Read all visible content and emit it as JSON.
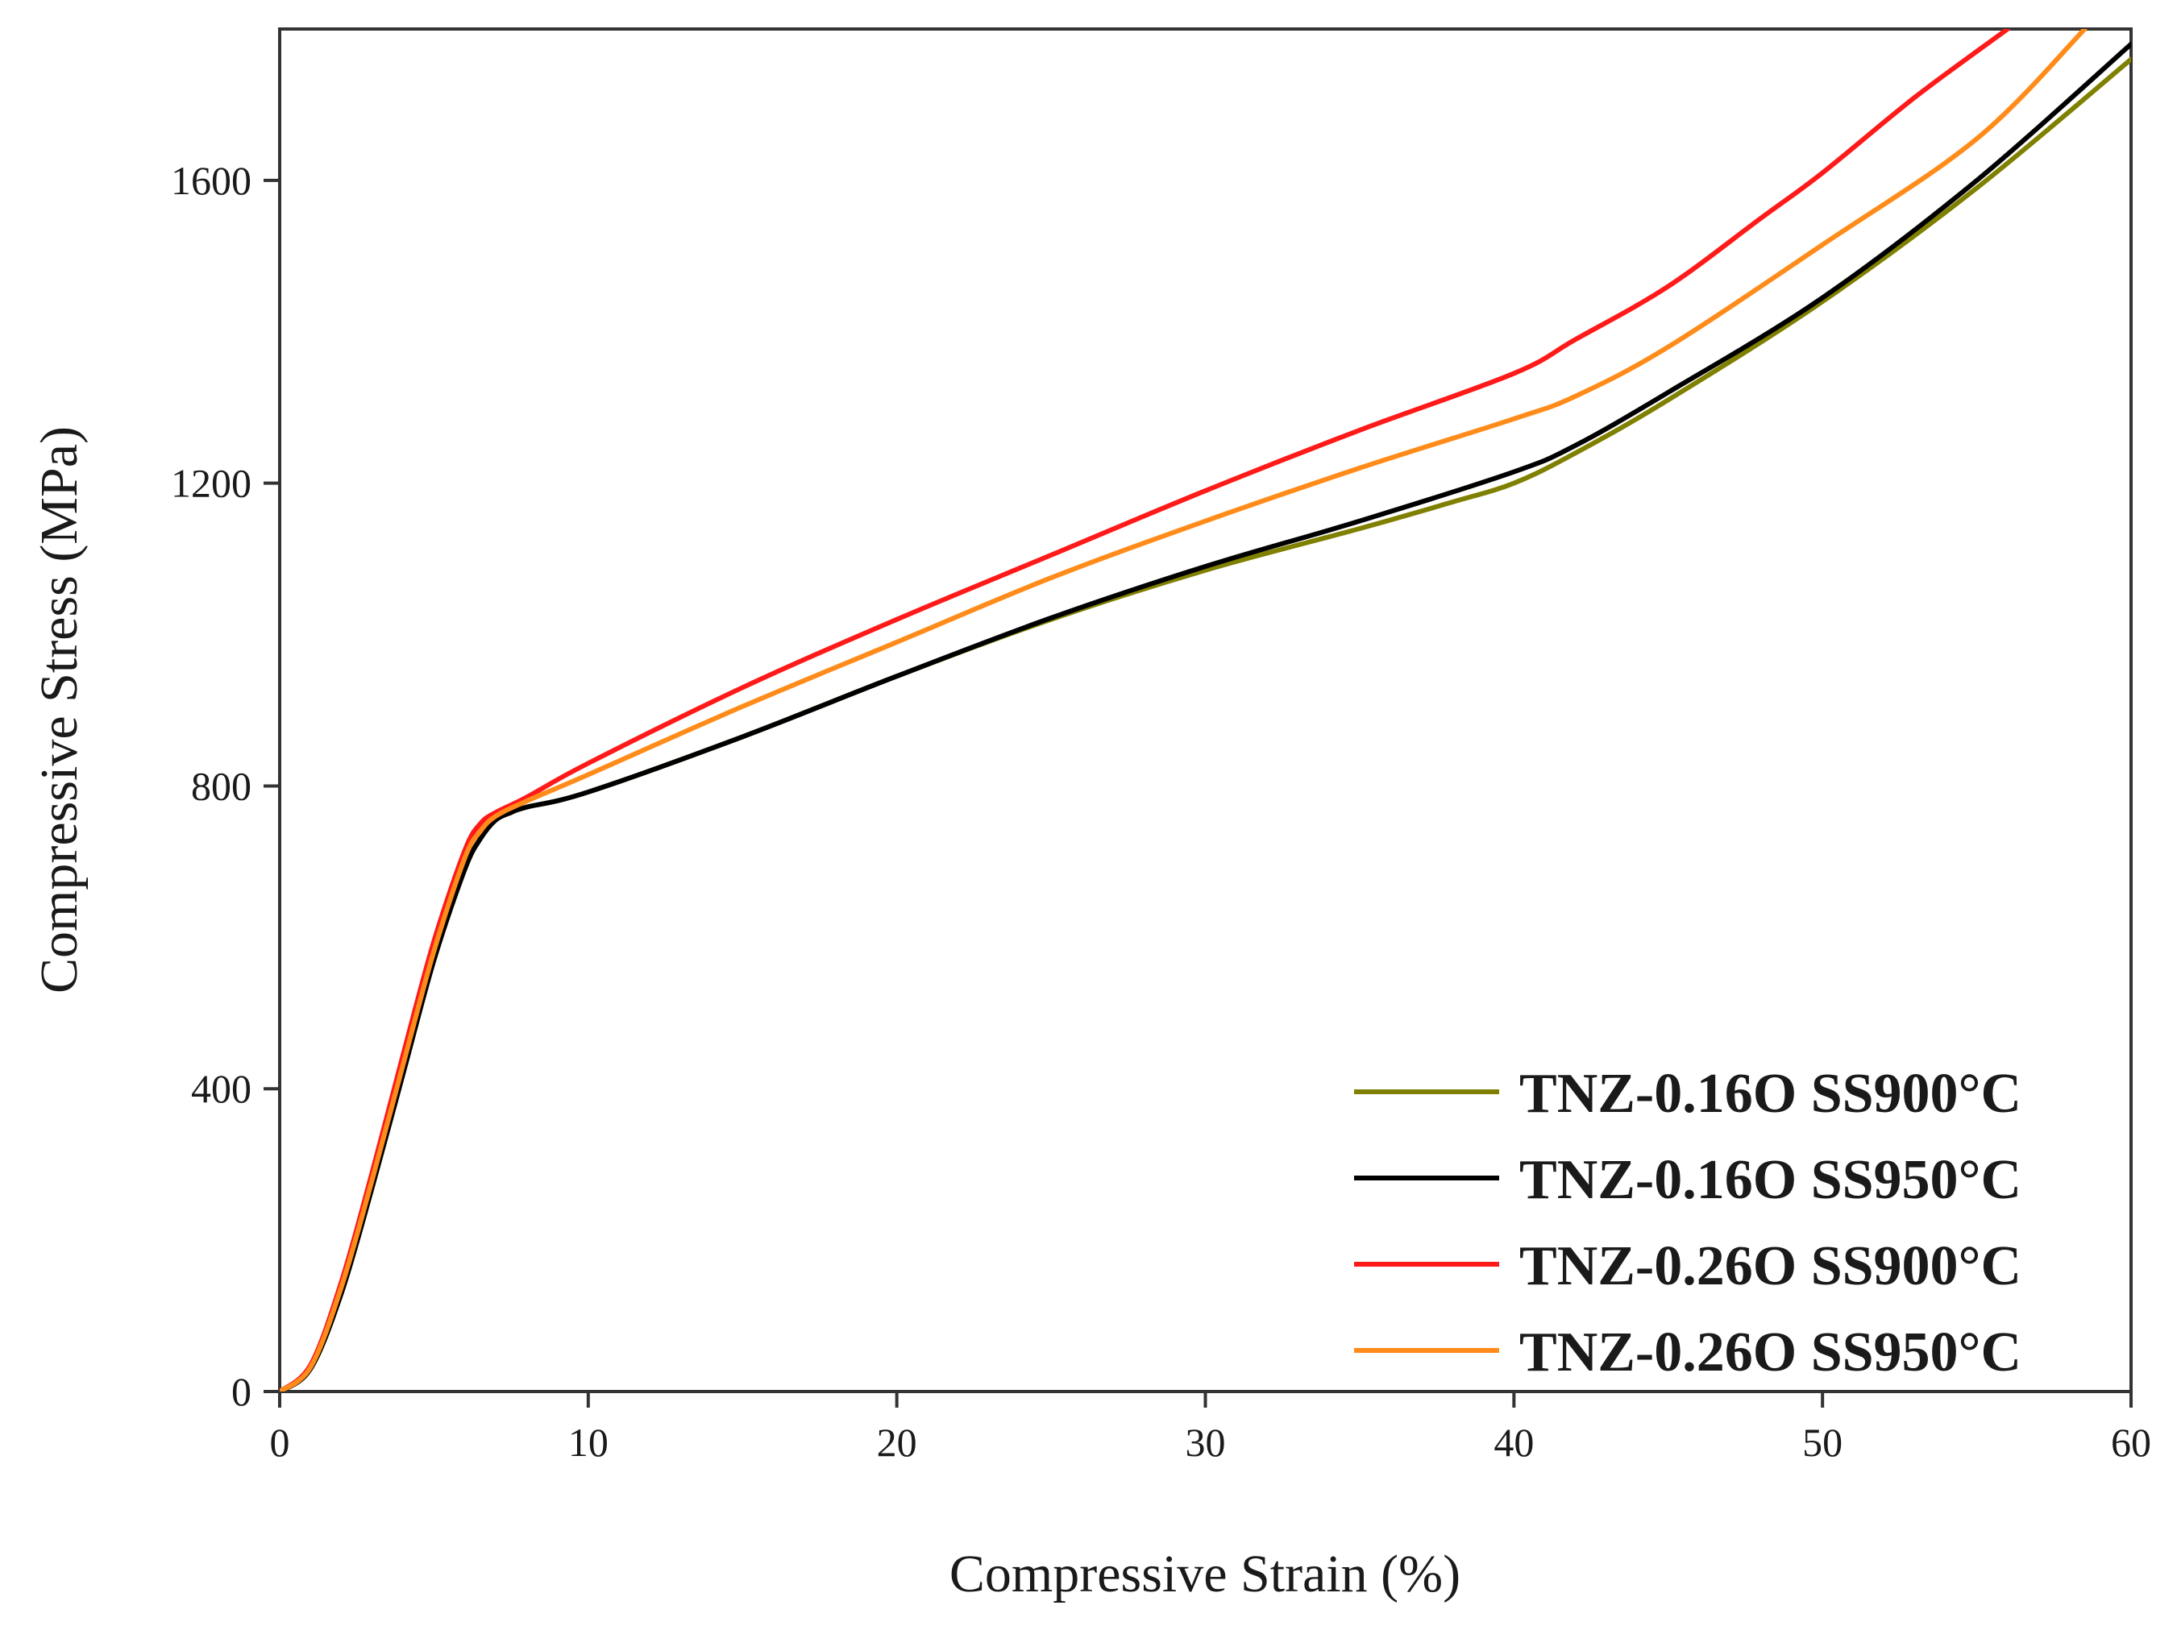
{
  "chart_data": {
    "type": "line",
    "title": "",
    "xlabel": "Compressive Strain (%)",
    "ylabel": "Compressive Stress (MPa)",
    "xlim": [
      0,
      60
    ],
    "ylim": [
      0,
      1800
    ],
    "xticks": [
      0,
      10,
      20,
      30,
      40,
      50,
      60
    ],
    "yticks": [
      0,
      400,
      800,
      1200,
      1600
    ],
    "grid": false,
    "legend_position": "bottom-right",
    "series": [
      {
        "name": "TNZ-0.16O SS900°C",
        "color": "#808000",
        "x": [
          0,
          1,
          2,
          3,
          4,
          5,
          6,
          6.5,
          7,
          7.5,
          8,
          10,
          15,
          20,
          25,
          30,
          35,
          38,
          40,
          42,
          45,
          50,
          55,
          60
        ],
        "y": [
          0,
          30,
          130,
          270,
          420,
          570,
          690,
          730,
          755,
          765,
          772,
          792,
          865,
          945,
          1020,
          1085,
          1140,
          1175,
          1200,
          1240,
          1310,
          1440,
          1590,
          1760
        ]
      },
      {
        "name": "TNZ-0.16O SS950°C",
        "color": "#000000",
        "x": [
          0,
          1,
          2,
          3,
          4,
          5,
          6,
          6.5,
          7,
          7.5,
          8,
          10,
          15,
          20,
          25,
          30,
          35,
          40,
          42,
          45,
          50,
          55,
          60
        ],
        "y": [
          0,
          30,
          130,
          270,
          420,
          570,
          690,
          730,
          755,
          765,
          772,
          792,
          865,
          945,
          1022,
          1090,
          1150,
          1215,
          1250,
          1320,
          1445,
          1600,
          1780
        ]
      },
      {
        "name": "TNZ-0.26O SS900°C",
        "color": "#ff1a1a",
        "x": [
          0,
          1,
          2,
          3,
          4,
          5,
          6,
          6.5,
          7,
          8,
          10,
          15,
          20,
          25,
          30,
          35,
          40,
          42,
          45,
          48,
          50,
          53,
          56
        ],
        "y": [
          0,
          35,
          145,
          290,
          445,
          595,
          715,
          750,
          765,
          785,
          830,
          930,
          1020,
          1105,
          1190,
          1270,
          1345,
          1390,
          1460,
          1550,
          1610,
          1710,
          1800
        ]
      },
      {
        "name": "TNZ-0.26O SS950°C",
        "color": "#ff8c1a",
        "x": [
          0,
          1,
          2,
          3,
          4,
          5,
          6,
          6.5,
          7,
          8,
          10,
          15,
          20,
          25,
          30,
          35,
          40,
          42,
          45,
          50,
          55,
          58.5
        ],
        "y": [
          0,
          32,
          138,
          280,
          432,
          582,
          705,
          740,
          760,
          780,
          815,
          905,
          990,
          1075,
          1150,
          1220,
          1285,
          1315,
          1380,
          1515,
          1655,
          1800
        ]
      }
    ]
  }
}
